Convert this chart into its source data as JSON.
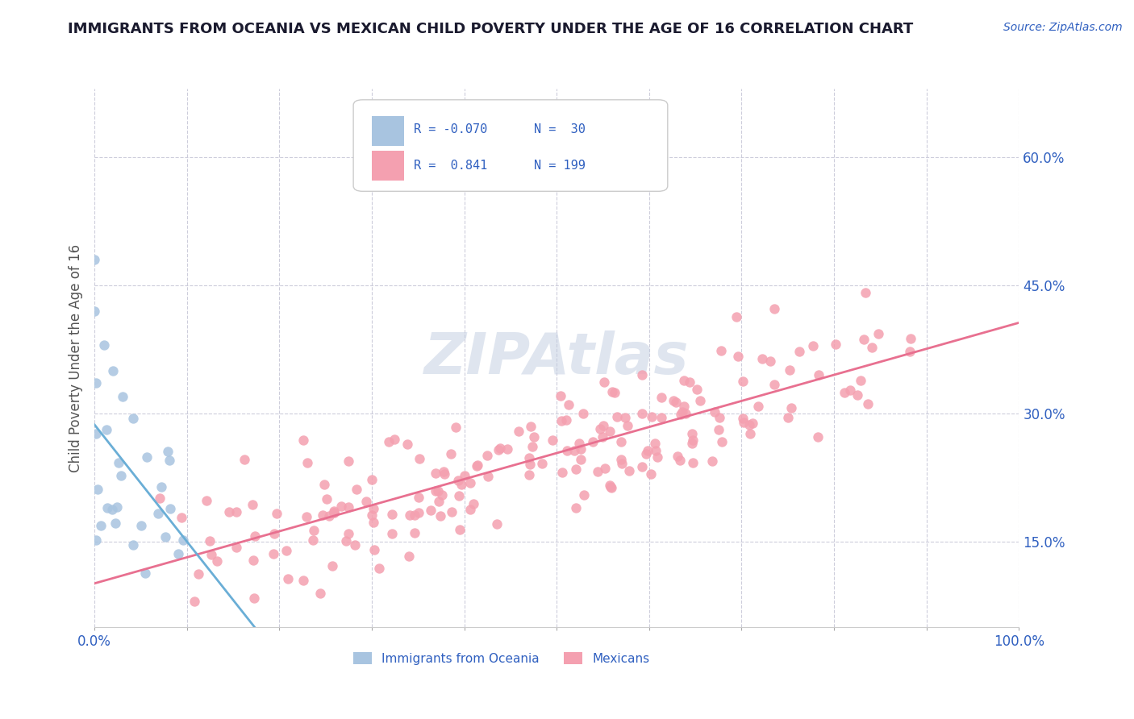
{
  "title": "IMMIGRANTS FROM OCEANIA VS MEXICAN CHILD POVERTY UNDER THE AGE OF 16 CORRELATION CHART",
  "source_text": "Source: ZipAtlas.com",
  "xlabel": "",
  "ylabel": "Child Poverty Under the Age of 16",
  "xlim": [
    0.0,
    1.0
  ],
  "ylim": [
    0.05,
    0.68
  ],
  "yticks": [
    0.15,
    0.3,
    0.45,
    0.6
  ],
  "ytick_labels": [
    "15.0%",
    "30.0%",
    "45.0%",
    "60.0%"
  ],
  "xticks": [
    0.0,
    0.1,
    0.2,
    0.3,
    0.4,
    0.5,
    0.6,
    0.7,
    0.8,
    0.9,
    1.0
  ],
  "xtick_labels": [
    "0.0%",
    "",
    "",
    "",
    "",
    "",
    "",
    "",
    "",
    "",
    "100.0%"
  ],
  "color_oceania": "#a8c4e0",
  "color_mexicans": "#f4a0b0",
  "color_line_oceania": "#6aaed6",
  "color_line_mexicans": "#e87090",
  "color_title": "#1a1a2e",
  "color_axis_labels": "#3060c0",
  "color_grid": "#c8c8d8",
  "watermark_text": "ZIPAtlas",
  "watermark_color": "#c0cce0",
  "background_color": "#ffffff",
  "legend_label1": "Immigrants from Oceania",
  "legend_label2": "Mexicans",
  "r_oceania": -0.07,
  "n_oceania": 30,
  "r_mexicans": 0.841,
  "n_mexicans": 199
}
